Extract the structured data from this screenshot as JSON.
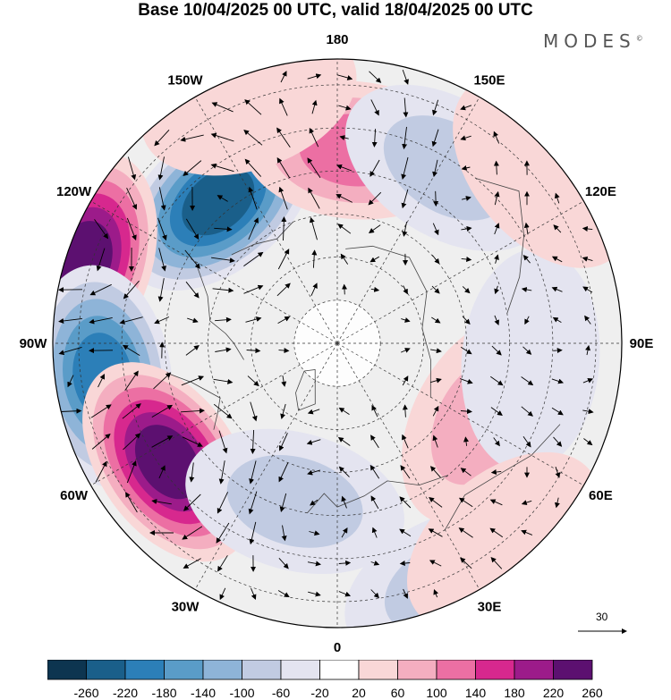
{
  "title": "Base 10/04/2025 00 UTC, valid 18/04/2025 00 UTC",
  "brand": "MODES",
  "brand_mark": "©",
  "longitude_labels": [
    "180",
    "150E",
    "120E",
    "90E",
    "60E",
    "30E",
    "0",
    "30W",
    "60W",
    "90W",
    "120W",
    "150W"
  ],
  "reference_vector": {
    "value": "30"
  },
  "colorbar": {
    "ticks": [
      "-260",
      "-220",
      "-180",
      "-140",
      "-100",
      "-60",
      "-20",
      "20",
      "60",
      "100",
      "140",
      "180",
      "220",
      "260"
    ],
    "colors": [
      "#0d3550",
      "#1a5f8a",
      "#2c7fb8",
      "#5a9cc8",
      "#8eb4d8",
      "#c1cbe2",
      "#e4e4f0",
      "#ffffff",
      "#f9d7d7",
      "#f4aec0",
      "#ec6fa3",
      "#d7288e",
      "#9c1b8a",
      "#5c1070"
    ]
  },
  "map": {
    "projection": "north-polar-stereographic",
    "anomalies": [
      {
        "center_lon": -140,
        "colat": 43,
        "value": -235
      },
      {
        "center_lon": 175,
        "colat": 45,
        "value": 130
      },
      {
        "center_lon": 148,
        "colat": 48,
        "value": -90
      },
      {
        "center_lon": -108,
        "colat": 62,
        "value": 250
      },
      {
        "center_lon": -82,
        "colat": 55,
        "value": -215
      },
      {
        "center_lon": -55,
        "colat": 48,
        "value": 250
      },
      {
        "center_lon": -15,
        "colat": 38,
        "value": -90
      },
      {
        "center_lon": 25,
        "colat": 62,
        "value": -80
      },
      {
        "center_lon": 62,
        "colat": 38,
        "value": 60
      },
      {
        "center_lon": 85,
        "colat": 45,
        "value": -50
      },
      {
        "center_lon": -160,
        "colat": 60,
        "value": 50
      },
      {
        "center_lon": 130,
        "colat": 62,
        "value": 30
      },
      {
        "center_lon": 40,
        "colat": 60,
        "value": 40
      }
    ]
  }
}
